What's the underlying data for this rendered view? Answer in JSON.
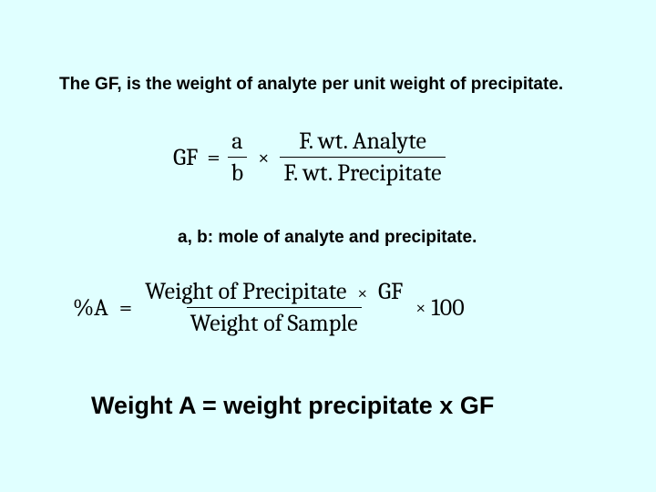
{
  "line1": "The GF, is the weight of analyte per unit weight of precipitate.",
  "eq1": {
    "gf": "GF",
    "eq": "=",
    "a": "a",
    "b": "b",
    "times": "×",
    "num": "F. wt. Analyte",
    "den": "F. wt. Precipitate"
  },
  "line2": "a, b: mole of analyte and precipitate.",
  "eq2": {
    "pa": "%A",
    "eq": "=",
    "num_left": "Weight of Precipitate",
    "times": "×",
    "num_right": "GF",
    "den": "Weight of Sample",
    "hundred": "100"
  },
  "line3": "Weight A = weight precipitate x GF",
  "colors": {
    "background": "#e0ffff",
    "text": "#000000"
  }
}
